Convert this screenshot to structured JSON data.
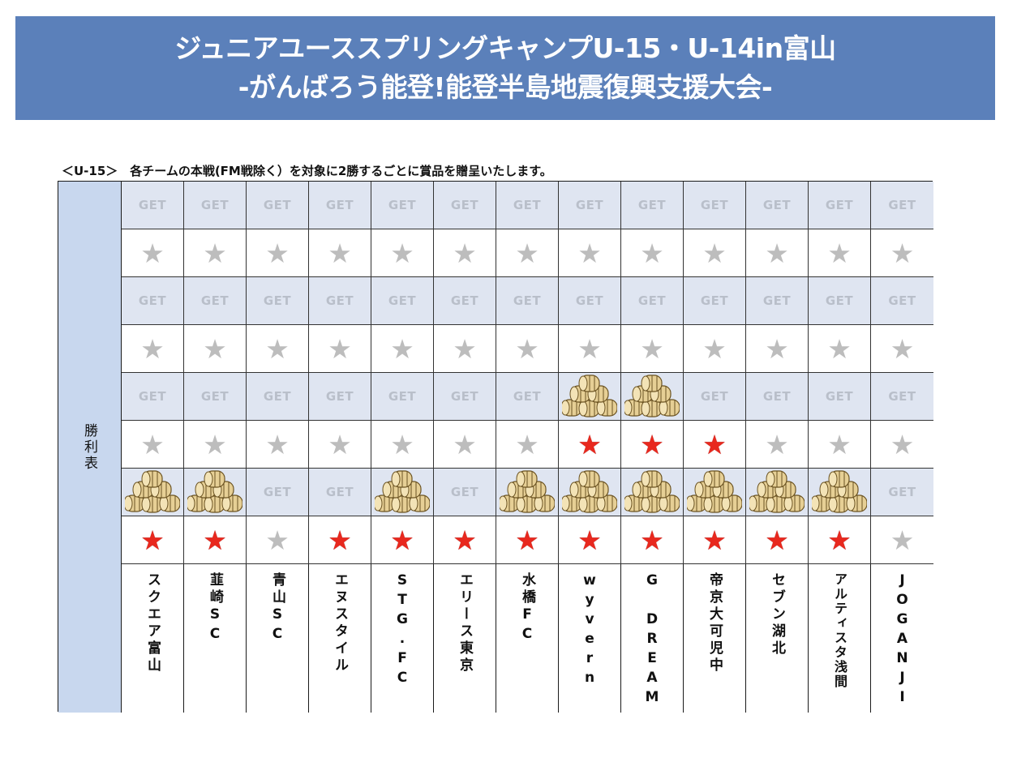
{
  "banner": {
    "line1": "ジュニアユーススプリングキャンプU-15・U-14in富山",
    "line2": "-がんばろう能登!能登半島地震復興支援大会-"
  },
  "subtitle": "＜U-15＞　各チームの本戦(FM戦除く）を対象に2勝するごとに賞品を贈呈いたします。",
  "side_label": "勝利表",
  "get_label": "GET",
  "icons": {
    "star": "star-icon",
    "prize": "rice-bale-stack-icon"
  },
  "colors": {
    "banner": "#5b80ba",
    "side": "#c8d7ee",
    "get_row": "#dfe5f1",
    "star_on": "#e8281e",
    "star_off": "#bdbdbd"
  },
  "teams": [
    {
      "name": "スクエア富山",
      "wins": 1,
      "prizes": 1
    },
    {
      "name": "韮崎SC",
      "wins": 1,
      "prizes": 1
    },
    {
      "name": "青山SC",
      "wins": 0,
      "prizes": 0
    },
    {
      "name": "エヌスタイル",
      "wins": 1,
      "prizes": 0
    },
    {
      "name": "STG.FC",
      "wins": 1,
      "prizes": 1
    },
    {
      "name": "エリース東京",
      "wins": 1,
      "prizes": 0
    },
    {
      "name": "水橋FC",
      "wins": 1,
      "prizes": 1
    },
    {
      "name": "wyvern",
      "wins": 2,
      "prizes": 2
    },
    {
      "name": "G DREAM",
      "wins": 2,
      "prizes": 2
    },
    {
      "name": "帝京大可児中",
      "wins": 2,
      "prizes": 1
    },
    {
      "name": "セブン湖北",
      "wins": 1,
      "prizes": 1
    },
    {
      "name": "アルティスタ浅間",
      "wins": 1,
      "prizes": 1
    },
    {
      "name": "JOGANJI",
      "wins": 0,
      "prizes": 0
    }
  ]
}
